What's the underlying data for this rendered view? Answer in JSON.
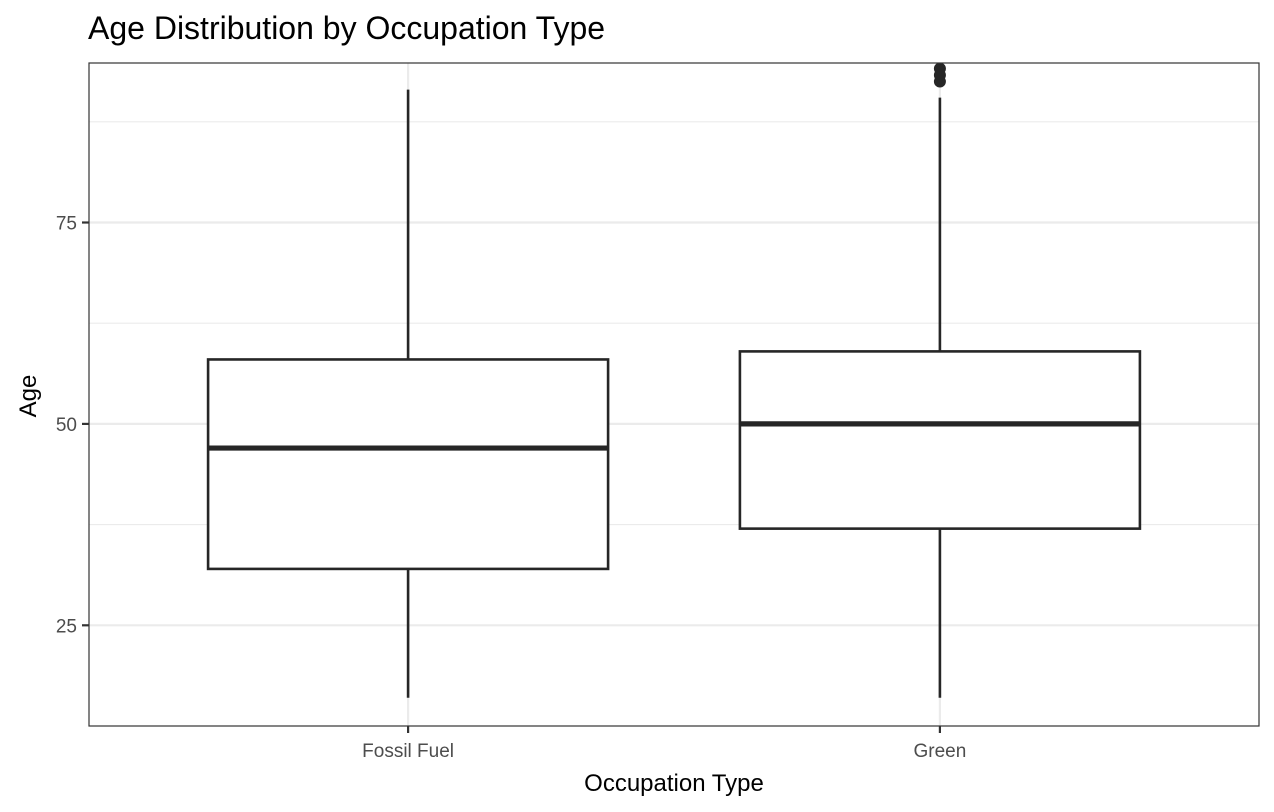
{
  "chart_data": {
    "type": "boxplot",
    "title": "Age Distribution by Occupation Type",
    "xlabel": "Occupation Type",
    "ylabel": "Age",
    "categories": [
      "Fossil Fuel",
      "Green"
    ],
    "boxes": [
      {
        "category": "Fossil Fuel",
        "whisker_low": 16,
        "q1": 32,
        "median": 47,
        "q3": 58,
        "whisker_high": 91.5,
        "outliers": []
      },
      {
        "category": "Green",
        "whisker_low": 16,
        "q1": 37,
        "median": 50,
        "q3": 59,
        "whisker_high": 90.5,
        "outliers": [
          92.5,
          93.3,
          94.1
        ]
      }
    ],
    "ylim": [
      12.5,
      94.8
    ],
    "yticks": [
      25,
      50,
      75
    ],
    "ytick_labels": [
      "25",
      "50",
      "75"
    ],
    "grid": true,
    "theme": "black-and-white panel",
    "colors": {
      "box_line": "#262626",
      "grid": "#ebebeb",
      "panel_border": "#333333"
    }
  }
}
